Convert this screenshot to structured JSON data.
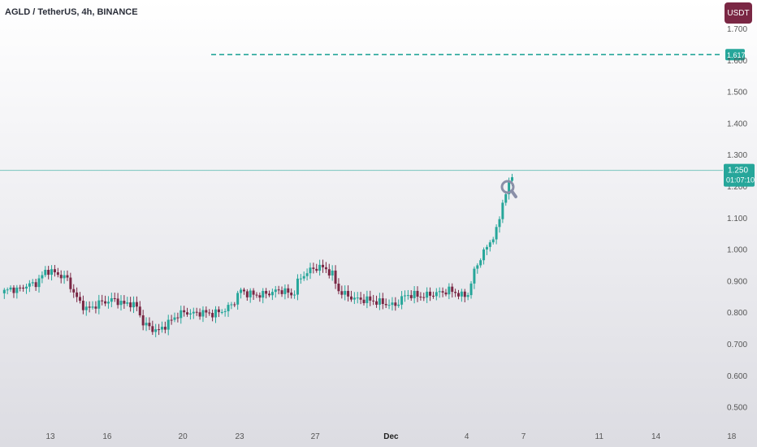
{
  "header": {
    "symbol_title": "AGLD / TetherUS, 4h, BINANCE",
    "currency_button": "USDT"
  },
  "colors": {
    "up": "#26a69a",
    "down": "#7a2744",
    "price_line": "#26a69a",
    "target_line": "#26a69a",
    "magnifier": "#8a8fa8"
  },
  "price_tag": {
    "price": "1.250",
    "countdown": "01:07:10"
  },
  "target_tag": {
    "price": "1.617"
  },
  "chart_data": {
    "type": "candlestick",
    "timeframe": "4h",
    "y_ticks": [
      "1.700",
      "1.600",
      "1.500",
      "1.400",
      "1.300",
      "1.200",
      "1.100",
      "1.000",
      "0.900",
      "0.800",
      "0.700",
      "0.600",
      "0.500"
    ],
    "x_ticks": [
      {
        "label": "13",
        "day": 13,
        "bold": false
      },
      {
        "label": "16",
        "day": 16,
        "bold": false
      },
      {
        "label": "20",
        "day": 20,
        "bold": false
      },
      {
        "label": "23",
        "day": 23,
        "bold": false
      },
      {
        "label": "27",
        "day": 27,
        "bold": false
      },
      {
        "label": "Dec",
        "day": 31,
        "bold": true
      },
      {
        "label": "4",
        "day": 35,
        "bold": false
      },
      {
        "label": "7",
        "day": 38,
        "bold": false
      },
      {
        "label": "11",
        "day": 42,
        "bold": false
      },
      {
        "label": "14",
        "day": 45,
        "bold": false
      },
      {
        "label": "18",
        "day": 49,
        "bold": false
      }
    ],
    "ylim": [
      0.45,
      1.73
    ],
    "last_price": 1.25,
    "target_level": 1.617,
    "close_path": [
      [
        10.4,
        0.86
      ],
      [
        10.9,
        0.875
      ],
      [
        11.3,
        0.87
      ],
      [
        11.7,
        0.885
      ],
      [
        12.2,
        0.89
      ],
      [
        12.5,
        0.91
      ],
      [
        12.8,
        0.935
      ],
      [
        13.2,
        0.925
      ],
      [
        13.6,
        0.915
      ],
      [
        13.9,
        0.905
      ],
      [
        14.2,
        0.865
      ],
      [
        14.5,
        0.835
      ],
      [
        14.9,
        0.81
      ],
      [
        15.2,
        0.815
      ],
      [
        15.6,
        0.83
      ],
      [
        16.0,
        0.835
      ],
      [
        16.3,
        0.84
      ],
      [
        16.6,
        0.835
      ],
      [
        16.9,
        0.825
      ],
      [
        17.2,
        0.83
      ],
      [
        17.6,
        0.815
      ],
      [
        17.9,
        0.765
      ],
      [
        18.3,
        0.75
      ],
      [
        18.7,
        0.74
      ],
      [
        19.0,
        0.755
      ],
      [
        19.4,
        0.775
      ],
      [
        19.8,
        0.795
      ],
      [
        20.2,
        0.8
      ],
      [
        20.6,
        0.795
      ],
      [
        21.0,
        0.8
      ],
      [
        21.5,
        0.795
      ],
      [
        21.9,
        0.8
      ],
      [
        22.3,
        0.81
      ],
      [
        22.7,
        0.83
      ],
      [
        23.0,
        0.87
      ],
      [
        23.4,
        0.86
      ],
      [
        23.8,
        0.855
      ],
      [
        24.1,
        0.855
      ],
      [
        24.5,
        0.86
      ],
      [
        24.8,
        0.865
      ],
      [
        25.2,
        0.87
      ],
      [
        25.5,
        0.865
      ],
      [
        25.8,
        0.85
      ],
      [
        26.1,
        0.9
      ],
      [
        26.5,
        0.925
      ],
      [
        26.8,
        0.935
      ],
      [
        27.2,
        0.945
      ],
      [
        27.6,
        0.935
      ],
      [
        27.9,
        0.92
      ],
      [
        28.2,
        0.87
      ],
      [
        28.6,
        0.855
      ],
      [
        29.0,
        0.845
      ],
      [
        29.3,
        0.84
      ],
      [
        29.7,
        0.84
      ],
      [
        30.1,
        0.835
      ],
      [
        30.5,
        0.83
      ],
      [
        30.9,
        0.825
      ],
      [
        31.2,
        0.82
      ],
      [
        31.5,
        0.84
      ],
      [
        31.8,
        0.855
      ],
      [
        32.2,
        0.855
      ],
      [
        32.6,
        0.85
      ],
      [
        33.0,
        0.855
      ],
      [
        33.4,
        0.86
      ],
      [
        33.8,
        0.865
      ],
      [
        34.1,
        0.87
      ],
      [
        34.5,
        0.86
      ],
      [
        34.8,
        0.85
      ],
      [
        35.1,
        0.86
      ],
      [
        35.4,
        0.93
      ],
      [
        35.7,
        0.97
      ],
      [
        36.0,
        1.0
      ],
      [
        36.3,
        1.03
      ],
      [
        36.6,
        1.06
      ],
      [
        36.9,
        1.15
      ],
      [
        37.2,
        1.2
      ],
      [
        37.5,
        1.25
      ]
    ]
  }
}
